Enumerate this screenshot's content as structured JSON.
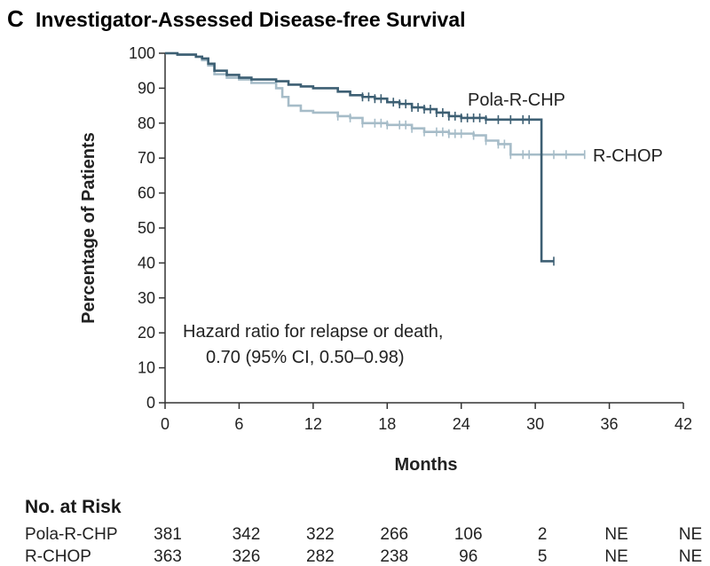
{
  "panel": {
    "letter": "C",
    "title": "Investigator-Assessed Disease-free Survival"
  },
  "chart_data": {
    "type": "line",
    "subtype": "kaplan-meier",
    "title": "Investigator-Assessed Disease-free Survival",
    "xlabel": "Months",
    "ylabel": "Percentage of Patients",
    "xlim": [
      0,
      42
    ],
    "ylim": [
      0,
      100
    ],
    "x_ticks": [
      0,
      6,
      12,
      18,
      24,
      30,
      36,
      42
    ],
    "y_ticks": [
      0,
      10,
      20,
      30,
      40,
      50,
      60,
      70,
      80,
      90,
      100
    ],
    "grid": false,
    "series": [
      {
        "name": "Pola-R-CHP",
        "label": "Pola-R-CHP",
        "color": "#3d5f73",
        "steps": [
          [
            0,
            100
          ],
          [
            1,
            99.6
          ],
          [
            2.5,
            99
          ],
          [
            3,
            98.5
          ],
          [
            3.5,
            97
          ],
          [
            4,
            95
          ],
          [
            5,
            93.8
          ],
          [
            6,
            93
          ],
          [
            7,
            92.5
          ],
          [
            9,
            92
          ],
          [
            10,
            91
          ],
          [
            11,
            90.5
          ],
          [
            12,
            90
          ],
          [
            14,
            89
          ],
          [
            15,
            88
          ],
          [
            16,
            87.5
          ],
          [
            17,
            87
          ],
          [
            18,
            86
          ],
          [
            19,
            85.5
          ],
          [
            20,
            84.5
          ],
          [
            21,
            84
          ],
          [
            22,
            83
          ],
          [
            23,
            82
          ],
          [
            24,
            81.5
          ],
          [
            26,
            81
          ],
          [
            30.5,
            81
          ],
          [
            30.5,
            40.5
          ],
          [
            31.5,
            40.5
          ]
        ],
        "censor_times": [
          16,
          16.5,
          17,
          17.5,
          18.5,
          19,
          19.5,
          20,
          20.5,
          21,
          21.5,
          22,
          22.5,
          23,
          23.5,
          24,
          24.5,
          25,
          25.5,
          26,
          27,
          28,
          29,
          29.5,
          31.5
        ]
      },
      {
        "name": "R-CHOP",
        "label": "R-CHOP",
        "color": "#a6bcc8",
        "steps": [
          [
            0,
            100
          ],
          [
            1,
            99.6
          ],
          [
            2.5,
            99
          ],
          [
            3,
            98
          ],
          [
            3.5,
            96.5
          ],
          [
            4,
            94
          ],
          [
            5,
            93
          ],
          [
            6,
            92.5
          ],
          [
            7,
            91.5
          ],
          [
            9,
            90
          ],
          [
            9.5,
            87.5
          ],
          [
            10,
            85
          ],
          [
            11,
            83.5
          ],
          [
            12,
            83
          ],
          [
            14,
            82
          ],
          [
            15,
            81.5
          ],
          [
            16,
            80
          ],
          [
            18,
            79.5
          ],
          [
            20,
            78.5
          ],
          [
            21,
            77.5
          ],
          [
            23,
            77
          ],
          [
            25,
            76.5
          ],
          [
            26,
            75
          ],
          [
            27,
            74
          ],
          [
            28,
            71
          ],
          [
            30.5,
            71
          ],
          [
            34,
            71
          ]
        ],
        "censor_times": [
          14,
          15,
          16,
          17,
          17.5,
          18,
          19,
          19.5,
          20,
          21,
          22,
          22.5,
          23,
          23.5,
          24,
          25,
          26,
          27,
          27.5,
          28,
          29,
          29.5,
          31.5,
          32.5,
          34
        ]
      }
    ],
    "annotation": [
      "Hazard ratio for relapse or death,",
      "0.70 (95% CI, 0.50–0.98)"
    ]
  },
  "risk_table": {
    "header": "No. at Risk",
    "times": [
      0,
      6,
      12,
      18,
      24,
      30,
      36,
      42
    ],
    "rows": [
      {
        "label": "Pola-R-CHP",
        "values": [
          "381",
          "342",
          "322",
          "266",
          "106",
          "2",
          "NE",
          "NE"
        ]
      },
      {
        "label": "R-CHOP",
        "values": [
          "363",
          "326",
          "282",
          "238",
          "96",
          "5",
          "NE",
          "NE"
        ]
      }
    ]
  }
}
